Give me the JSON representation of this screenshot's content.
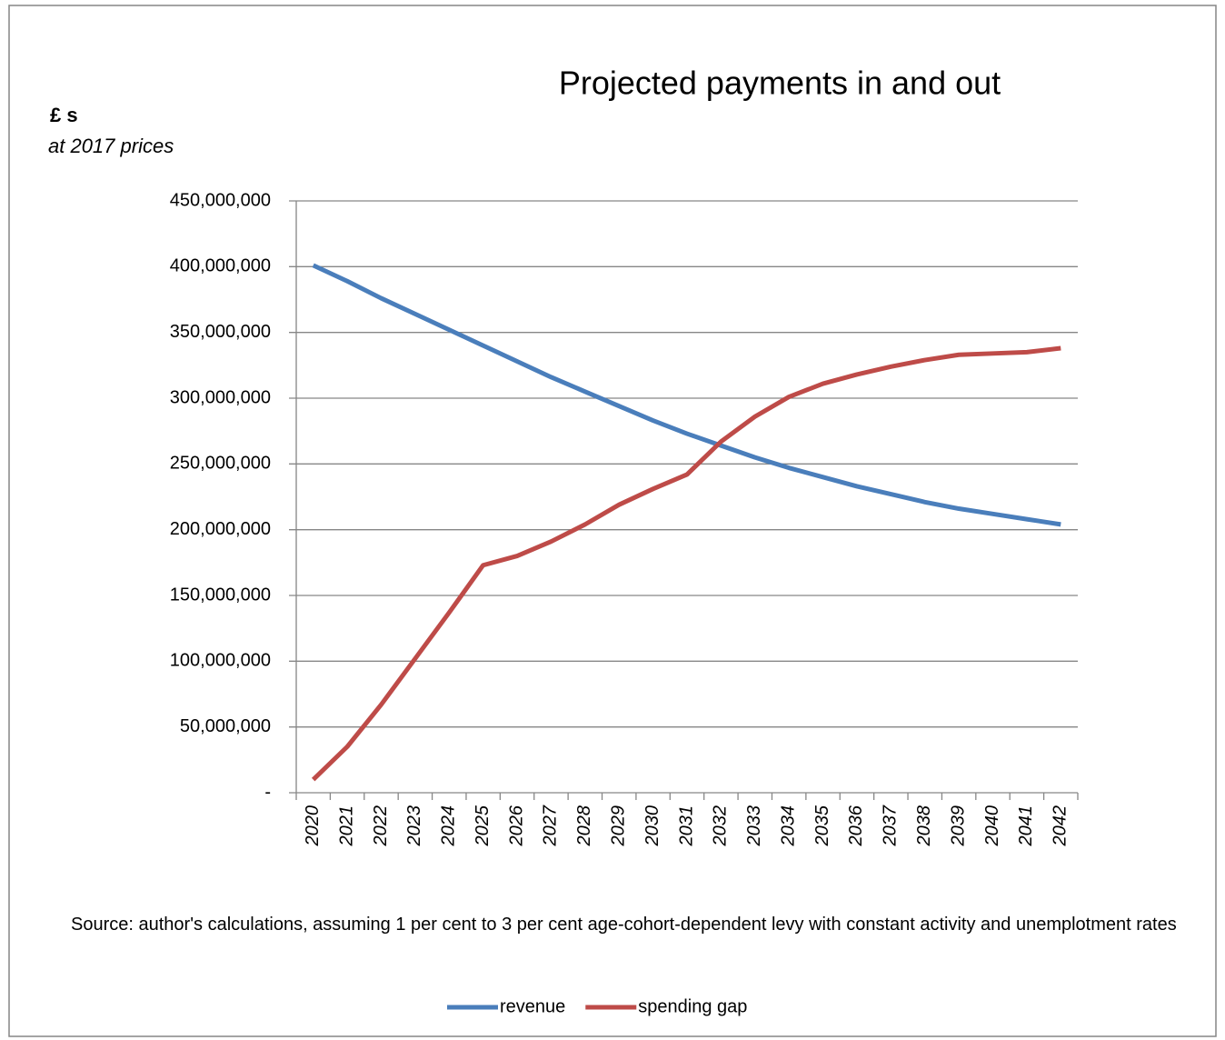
{
  "chart_data": {
    "type": "line",
    "title": "Projected payments in and out",
    "y_label": "£ s",
    "y_sublabel": "at 2017 prices",
    "note": "Source: author's calculations, assuming 1 per cent to 3 per cent age-cohort-dependent levy with constant activity and unemplotment rates",
    "categories": [
      "2020",
      "2021",
      "2022",
      "2023",
      "2024",
      "2025",
      "2026",
      "2027",
      "2028",
      "2029",
      "2030",
      "2031",
      "2032",
      "2033",
      "2034",
      "2035",
      "2036",
      "2037",
      "2038",
      "2039",
      "2040",
      "2041",
      "2042"
    ],
    "series": [
      {
        "name": "revenue",
        "color": "#4a7ebb",
        "values": [
          401000000,
          389000000,
          376000000,
          364000000,
          352000000,
          340000000,
          328000000,
          316000000,
          305000000,
          294000000,
          283000000,
          273000000,
          264000000,
          255000000,
          247000000,
          240000000,
          233000000,
          227000000,
          221000000,
          216000000,
          212000000,
          208000000,
          204000000
        ]
      },
      {
        "name": "spending gap",
        "color": "#be4b48",
        "values": [
          10000000,
          35000000,
          67000000,
          102000000,
          137000000,
          173000000,
          180000000,
          191000000,
          204000000,
          219000000,
          231000000,
          242000000,
          267000000,
          286000000,
          301000000,
          311000000,
          318000000,
          324000000,
          329000000,
          333000000,
          334000000,
          335000000,
          338000000
        ]
      }
    ],
    "ylim": [
      0,
      450000000
    ],
    "yticks": [
      {
        "value": 0,
        "label": "-"
      },
      {
        "value": 50000000,
        "label": "50,000,000"
      },
      {
        "value": 100000000,
        "label": "100,000,000"
      },
      {
        "value": 150000000,
        "label": "150,000,000"
      },
      {
        "value": 200000000,
        "label": "200,000,000"
      },
      {
        "value": 250000000,
        "label": "250,000,000"
      },
      {
        "value": 300000000,
        "label": "300,000,000"
      },
      {
        "value": 350000000,
        "label": "350,000,000"
      },
      {
        "value": 400000000,
        "label": "400,000,000"
      },
      {
        "value": 450000000,
        "label": "450,000,000"
      }
    ],
    "grid": true,
    "legend": "bottom"
  }
}
